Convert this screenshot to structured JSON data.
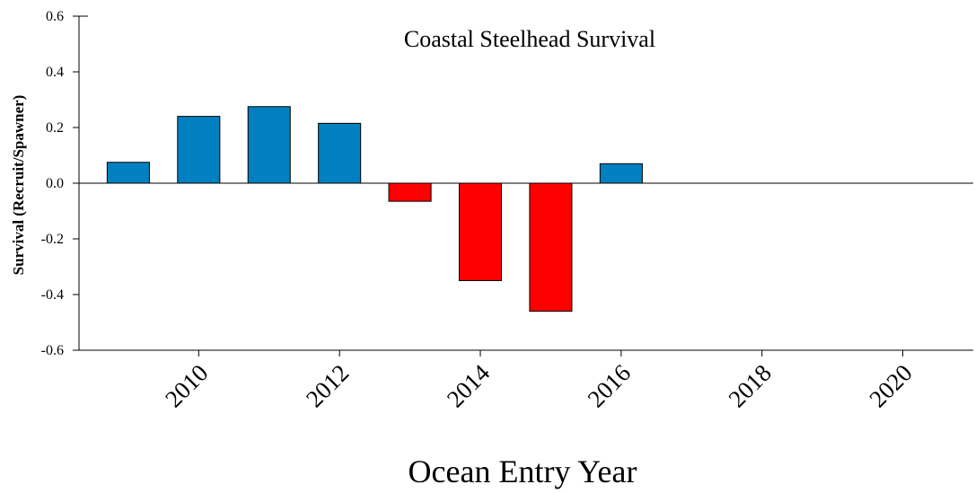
{
  "chart_data": {
    "type": "bar",
    "title": "Coastal Steelhead Survival",
    "xlabel": "Ocean Entry Year",
    "ylabel": "Survival (Recruit/Spawner)",
    "xlim": [
      2008.3,
      2021
    ],
    "ylim": [
      -0.6,
      0.6
    ],
    "x_ticks": [
      "2010",
      "2012",
      "2014",
      "2016",
      "2018",
      "2020"
    ],
    "y_ticks": [
      "-0.6",
      "-0.4",
      "-0.2",
      "0.0",
      "0.2",
      "0.4",
      "0.6"
    ],
    "x": [
      2009,
      2010,
      2011,
      2012,
      2013,
      2014,
      2015,
      2016
    ],
    "values": [
      0.075,
      0.24,
      0.275,
      0.215,
      -0.065,
      -0.35,
      -0.46,
      0.07
    ],
    "colors": {
      "positive": "#0080c0",
      "negative": "#ff0000"
    },
    "grid": false,
    "zero_line": true
  }
}
